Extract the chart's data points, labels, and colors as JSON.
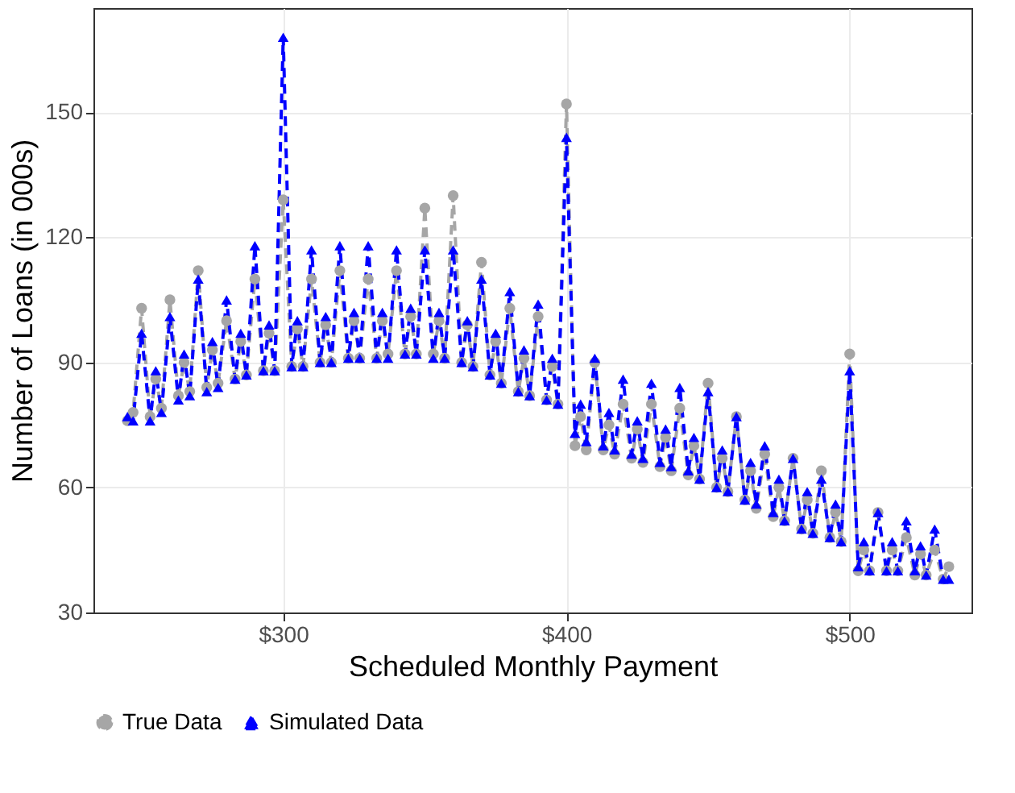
{
  "chart_data": {
    "type": "line",
    "xlabel": "Scheduled Monthly Payment",
    "ylabel": "Number of Loans (in 000s)",
    "x": [
      245,
      247,
      250,
      253,
      255,
      257,
      260,
      263,
      265,
      267,
      270,
      273,
      275,
      277,
      280,
      283,
      285,
      287,
      290,
      293,
      295,
      297,
      300,
      303,
      305,
      307,
      310,
      313,
      315,
      317,
      320,
      323,
      325,
      327,
      330,
      333,
      335,
      337,
      340,
      343,
      345,
      347,
      350,
      353,
      355,
      357,
      360,
      363,
      365,
      367,
      370,
      373,
      375,
      377,
      380,
      383,
      385,
      387,
      390,
      393,
      395,
      397,
      400,
      403,
      405,
      407,
      410,
      413,
      415,
      417,
      420,
      423,
      425,
      427,
      430,
      433,
      435,
      437,
      440,
      443,
      445,
      447,
      450,
      453,
      455,
      457,
      460,
      463,
      465,
      467,
      470,
      473,
      475,
      477,
      480,
      483,
      485,
      487,
      490,
      493,
      495,
      497,
      500,
      503,
      505,
      507,
      510,
      513,
      515,
      517,
      520,
      523,
      525,
      527,
      530,
      533,
      535
    ],
    "series": [
      {
        "name": "True Data",
        "color": "#a6a6a6",
        "marker": "circle",
        "line_style": "dashed",
        "values": [
          76,
          78,
          103,
          77,
          86,
          79,
          105,
          82,
          90,
          83,
          112,
          84,
          93,
          85,
          100,
          86,
          95,
          87,
          110,
          88,
          97,
          88,
          129,
          89,
          98,
          89,
          110,
          90,
          99,
          90,
          112,
          91,
          100,
          91,
          110,
          91,
          100,
          92,
          112,
          92,
          101,
          92,
          127,
          92,
          100,
          91,
          130,
          90,
          99,
          89,
          114,
          87,
          95,
          85,
          103,
          83,
          91,
          82,
          101,
          81,
          89,
          80,
          152,
          70,
          77,
          69,
          90,
          69,
          75,
          68,
          80,
          67,
          74,
          66,
          80,
          65,
          72,
          64,
          79,
          63,
          70,
          62,
          85,
          60,
          67,
          59,
          77,
          57,
          64,
          55,
          68,
          53,
          60,
          52,
          67,
          50,
          57,
          49,
          64,
          48,
          54,
          47,
          92,
          40,
          45,
          40,
          54,
          40,
          45,
          40,
          48,
          39,
          44,
          39,
          45,
          38,
          41
        ]
      },
      {
        "name": "Simulated Data",
        "color": "#0000ff",
        "marker": "triangle",
        "line_style": "dashed",
        "values": [
          77,
          76,
          97,
          76,
          88,
          78,
          101,
          81,
          92,
          82,
          110,
          83,
          95,
          84,
          105,
          86,
          97,
          87,
          118,
          88,
          99,
          88,
          168,
          89,
          100,
          89,
          117,
          90,
          101,
          90,
          118,
          91,
          102,
          91,
          118,
          91,
          102,
          91,
          117,
          92,
          103,
          92,
          117,
          91,
          102,
          91,
          117,
          90,
          100,
          89,
          110,
          87,
          97,
          85,
          107,
          83,
          93,
          82,
          104,
          81,
          91,
          80,
          144,
          73,
          80,
          71,
          91,
          70,
          78,
          69,
          86,
          68,
          76,
          67,
          85,
          66,
          74,
          65,
          84,
          64,
          72,
          62,
          83,
          60,
          69,
          59,
          77,
          57,
          66,
          56,
          70,
          54,
          62,
          52,
          67,
          50,
          59,
          49,
          62,
          48,
          56,
          47,
          88,
          41,
          47,
          40,
          54,
          40,
          47,
          40,
          52,
          40,
          46,
          39,
          50,
          38,
          38
        ]
      }
    ],
    "xlim": [
      233,
      543
    ],
    "xticks": [
      {
        "value": 300,
        "label": "$300"
      },
      {
        "value": 400,
        "label": "$400"
      },
      {
        "value": 500,
        "label": "$500"
      }
    ],
    "ylim": [
      30,
      175
    ],
    "yticks": [
      30,
      60,
      90,
      120,
      150
    ],
    "grid": true,
    "legend": "bottom"
  }
}
